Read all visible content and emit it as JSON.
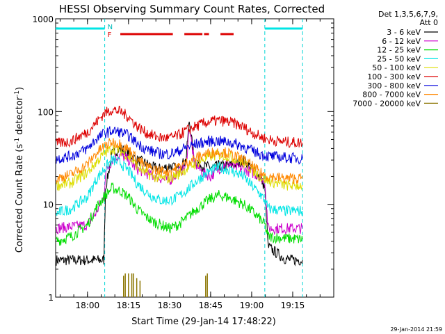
{
  "chart_data": {
    "type": "line",
    "title": "HESSI Observing Summary Count Rates, Corrected",
    "xlabel": "Start Time (29-Jan-14 17:48:22)",
    "ylabel_parts": [
      "Corrected Count Rate (s",
      "-1",
      " detector",
      "-1",
      ")"
    ],
    "yscale": "log",
    "ylim": [
      1,
      1000
    ],
    "xlim": [
      17.806,
      19.5
    ],
    "x_ticks": [
      {
        "x": 18.0,
        "label": "18:00"
      },
      {
        "x": 18.25,
        "label": "18:15"
      },
      {
        "x": 18.5,
        "label": "18:30"
      },
      {
        "x": 18.75,
        "label": "18:45"
      },
      {
        "x": 19.0,
        "label": "19:00"
      },
      {
        "x": 19.25,
        "label": "19:15"
      }
    ],
    "y_ticks": [
      {
        "y": 1,
        "label": "1"
      },
      {
        "y": 10,
        "label": "10"
      },
      {
        "y": 100,
        "label": "100"
      },
      {
        "y": 1000,
        "label": "1000"
      }
    ],
    "legend_header": [
      "Det 1,3,5,6,7,9,",
      "Att 0"
    ],
    "legend_position": "right",
    "series": [
      {
        "name": "3 - 6 keV",
        "color": "#000000",
        "x": [
          17.81,
          18.0,
          18.1,
          18.11,
          18.15,
          18.2,
          18.25,
          18.3,
          18.35,
          18.4,
          18.45,
          18.5,
          18.55,
          18.6,
          18.62,
          18.65,
          18.7,
          18.75,
          18.8,
          18.85,
          18.9,
          18.95,
          19.0,
          19.05,
          19.08,
          19.1,
          19.15,
          19.2,
          19.25,
          19.31
        ],
        "y": [
          2.5,
          2.5,
          2.5,
          15,
          35,
          40,
          36,
          30,
          28,
          25,
          24,
          26,
          24,
          30,
          80,
          30,
          26,
          25,
          26,
          26,
          27,
          30,
          25,
          20,
          15,
          3.5,
          3,
          2.6,
          2.5,
          2.5
        ]
      },
      {
        "name": "6 - 12 keV",
        "color": "#cc00cc",
        "x": [
          17.81,
          18.0,
          18.05,
          18.1,
          18.11,
          18.15,
          18.2,
          18.25,
          18.3,
          18.35,
          18.4,
          18.45,
          18.5,
          18.55,
          18.6,
          18.62,
          18.65,
          18.7,
          18.75,
          18.8,
          18.85,
          18.9,
          18.95,
          19.0,
          19.05,
          19.08,
          19.1,
          19.2,
          19.31
        ],
        "y": [
          5.5,
          6,
          8,
          12,
          22,
          30,
          34,
          30,
          24,
          22,
          20,
          19,
          18,
          22,
          25,
          70,
          28,
          22,
          20,
          24,
          28,
          25,
          24,
          22,
          20,
          18,
          5.5,
          5.5,
          5.5
        ]
      },
      {
        "name": "12 - 25 keV",
        "color": "#00dd00",
        "x": [
          17.81,
          17.9,
          18.0,
          18.05,
          18.1,
          18.15,
          18.2,
          18.25,
          18.3,
          18.35,
          18.4,
          18.45,
          18.5,
          18.55,
          18.6,
          18.65,
          18.7,
          18.75,
          18.8,
          18.85,
          18.9,
          18.95,
          19.0,
          19.05,
          19.08,
          19.1,
          19.2,
          19.31
        ],
        "y": [
          4,
          4.5,
          6,
          9,
          12,
          15,
          14,
          12,
          9,
          7.5,
          6.5,
          6,
          5.5,
          6,
          7,
          8.5,
          10,
          11.5,
          12.5,
          12,
          11,
          10,
          8.5,
          7,
          6,
          4.5,
          4.3,
          4.2
        ]
      },
      {
        "name": "25 - 50 keV",
        "color": "#00e5e5",
        "x": [
          17.81,
          17.9,
          18.0,
          18.05,
          18.1,
          18.15,
          18.2,
          18.25,
          18.3,
          18.35,
          18.4,
          18.45,
          18.5,
          18.55,
          18.6,
          18.65,
          18.7,
          18.75,
          18.8,
          18.85,
          18.9,
          18.95,
          19.0,
          19.05,
          19.08,
          19.1,
          19.2,
          19.31
        ],
        "y": [
          8,
          9,
          12,
          18,
          24,
          30,
          28,
          23,
          17,
          14,
          12,
          11,
          11,
          12,
          14,
          17,
          20,
          23,
          25,
          24,
          22,
          20,
          16,
          13,
          11,
          9,
          8.5,
          8.5
        ]
      },
      {
        "name": "50 - 100 keV",
        "color": "#dddd00",
        "x": [
          17.81,
          17.9,
          18.0,
          18.05,
          18.1,
          18.15,
          18.2,
          18.25,
          18.3,
          18.35,
          18.4,
          18.45,
          18.5,
          18.55,
          18.6,
          18.65,
          18.7,
          18.75,
          18.8,
          18.85,
          18.9,
          18.95,
          19.0,
          19.05,
          19.1,
          19.2,
          19.31
        ],
        "y": [
          16,
          17,
          22,
          28,
          35,
          40,
          38,
          33,
          26,
          22,
          20,
          19,
          19,
          21,
          24,
          27,
          30,
          33,
          34,
          33,
          31,
          28,
          24,
          20,
          18,
          16,
          16
        ]
      },
      {
        "name": "100 - 300 keV",
        "color": "#dd0000",
        "x": [
          17.81,
          17.9,
          18.0,
          18.05,
          18.1,
          18.15,
          18.2,
          18.25,
          18.3,
          18.35,
          18.4,
          18.45,
          18.5,
          18.55,
          18.6,
          18.65,
          18.7,
          18.75,
          18.8,
          18.85,
          18.9,
          18.95,
          19.0,
          19.05,
          19.1,
          19.2,
          19.31
        ],
        "y": [
          45,
          48,
          60,
          75,
          95,
          105,
          100,
          88,
          70,
          60,
          55,
          52,
          52,
          55,
          62,
          68,
          74,
          78,
          80,
          78,
          74,
          68,
          60,
          54,
          50,
          47,
          46
        ]
      },
      {
        "name": "300 - 800 keV",
        "color": "#0000dd",
        "x": [
          17.81,
          17.9,
          18.0,
          18.05,
          18.1,
          18.15,
          18.2,
          18.25,
          18.3,
          18.35,
          18.4,
          18.45,
          18.5,
          18.55,
          18.6,
          18.65,
          18.7,
          18.75,
          18.8,
          18.85,
          18.9,
          18.95,
          19.0,
          19.05,
          19.1,
          19.2,
          19.31
        ],
        "y": [
          31,
          33,
          40,
          50,
          58,
          62,
          60,
          55,
          46,
          40,
          37,
          35,
          35,
          37,
          41,
          44,
          46,
          48,
          48,
          47,
          45,
          42,
          38,
          35,
          33,
          32,
          31
        ]
      },
      {
        "name": "800 - 7000 keV",
        "color": "#ff8800",
        "x": [
          17.81,
          17.9,
          18.0,
          18.05,
          18.1,
          18.15,
          18.2,
          18.25,
          18.3,
          18.35,
          18.4,
          18.45,
          18.5,
          18.55,
          18.6,
          18.65,
          18.7,
          18.75,
          18.8,
          18.85,
          18.9,
          18.95,
          19.0,
          19.05,
          19.1,
          19.2,
          19.31
        ],
        "y": [
          19,
          21,
          27,
          35,
          42,
          47,
          45,
          39,
          31,
          26,
          24,
          23,
          23,
          25,
          28,
          31,
          34,
          36,
          37,
          36,
          33,
          30,
          26,
          22,
          20,
          19,
          19
        ]
      },
      {
        "name": "7000 - 20000 keV",
        "color": "#8b7500",
        "x": [
          18.22,
          18.23,
          18.25,
          18.27,
          18.28,
          18.3,
          18.32,
          18.72,
          18.73
        ],
        "y": [
          1.7,
          1.8,
          1.8,
          1.8,
          1.8,
          1.6,
          1.5,
          1.7,
          1.8
        ]
      }
    ],
    "attenuator_levels": [
      {
        "x": [
          17.806,
          18.105
        ],
        "label": ""
      },
      {
        "x": [
          19.08,
          19.31
        ],
        "label": ""
      }
    ],
    "flag_labels": {
      "top": "N",
      "bottom": "F"
    },
    "flare_flags": [
      [
        18.2,
        18.52
      ],
      [
        18.59,
        18.7
      ],
      [
        18.71,
        18.74
      ],
      [
        18.81,
        18.89
      ]
    ],
    "night_markers": [
      18.105,
      19.08,
      19.31
    ],
    "footer_date": "29-Jan-2014 21:59"
  }
}
